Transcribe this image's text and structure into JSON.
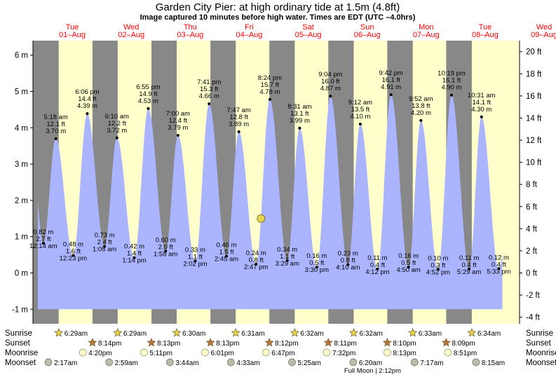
{
  "chart_data": {
    "type": "area",
    "title": "Garden City Pier: at high  ordinary tide at 1.5m (4.8ft)",
    "subtitle": "Image captured 10 minutes before high water. Times are EDT (UTC –4.0hrs)",
    "days": [
      {
        "dow": "Tue",
        "date": "01–Aug"
      },
      {
        "dow": "Wed",
        "date": "02–Aug"
      },
      {
        "dow": "Thu",
        "date": "03–Aug"
      },
      {
        "dow": "Fri",
        "date": "04–Aug"
      },
      {
        "dow": "Sat",
        "date": "05–Aug"
      },
      {
        "dow": "Sun",
        "date": "06–Aug"
      },
      {
        "dow": "Mon",
        "date": "07–Aug"
      },
      {
        "dow": "Tue",
        "date": "08–Aug"
      },
      {
        "dow": "Wed",
        "date": "09–Aug"
      }
    ],
    "y_left": {
      "unit": "m",
      "range": [
        -1.4,
        6.4
      ],
      "ticks": [
        -1,
        0,
        1,
        2,
        3,
        4,
        5,
        6
      ]
    },
    "y_right": {
      "unit": "ft",
      "ticks": [
        -4,
        -2,
        0,
        2,
        4,
        6,
        8,
        10,
        12,
        14,
        16,
        18,
        20
      ]
    },
    "x_range_hours": [
      20,
      218
    ],
    "current_level_m": 1.5,
    "highs": [
      {
        "time": "5:18 am",
        "ft": "12.1 ft",
        "m": "3.70 m",
        "hour": 29.3,
        "value": 3.7
      },
      {
        "time": "6:06 pm",
        "ft": "14.4 ft",
        "m": "4.39 m",
        "hour": 42.1,
        "value": 4.39
      },
      {
        "time": "6:10 am",
        "ft": "12.2 ft",
        "m": "3.72 m",
        "hour": 54.17,
        "value": 3.72
      },
      {
        "time": "6:55 pm",
        "ft": "14.9 ft",
        "m": "4.53 m",
        "hour": 66.92,
        "value": 4.53
      },
      {
        "time": "7:00 am",
        "ft": "12.4 ft",
        "m": "3.79 m",
        "hour": 79.0,
        "value": 3.79
      },
      {
        "time": "7:41 pm",
        "ft": "15.3 ft",
        "m": "4.66 m",
        "hour": 91.68,
        "value": 4.66
      },
      {
        "time": "7:47 am",
        "ft": "12.8 ft",
        "m": "3.89 m",
        "hour": 103.78,
        "value": 3.89
      },
      {
        "time": "8:24 pm",
        "ft": "15.7 ft",
        "m": "4.78 m",
        "hour": 116.4,
        "value": 4.78
      },
      {
        "time": "8:31 am",
        "ft": "13.1 ft",
        "m": "3.99 m",
        "hour": 128.52,
        "value": 3.99
      },
      {
        "time": "9:04 pm",
        "ft": "16.0 ft",
        "m": "4.87 m",
        "hour": 141.07,
        "value": 4.87
      },
      {
        "time": "9:12 am",
        "ft": "13.5 ft",
        "m": "4.10 m",
        "hour": 153.2,
        "value": 4.1
      },
      {
        "time": "9:42 pm",
        "ft": "16.1 ft",
        "m": "4.91 m",
        "hour": 165.7,
        "value": 4.91
      },
      {
        "time": "9:52 am",
        "ft": "13.8 ft",
        "m": "4.20 m",
        "hour": 177.87,
        "value": 4.2
      },
      {
        "time": "10:19 pm",
        "ft": "16.1 ft",
        "m": "4.90 m",
        "hour": 190.32,
        "value": 4.9
      },
      {
        "time": "10:31 am",
        "ft": "14.1 ft",
        "m": "4.30 m",
        "hour": 202.52,
        "value": 4.3
      }
    ],
    "lows": [
      {
        "time": "12:14 am",
        "ft": "2.7 ft",
        "m": "0.82 m",
        "hour": 24.23,
        "value": 0.82
      },
      {
        "time": "12:23 pm",
        "ft": "1.6 ft",
        "m": "0.48 m",
        "hour": 36.38,
        "value": 0.48
      },
      {
        "time": "1:08 am",
        "ft": "2.4 ft",
        "m": "0.73 m",
        "hour": 49.13,
        "value": 0.73
      },
      {
        "time": "1:14 pm",
        "ft": "1.4 ft",
        "m": "0.42 m",
        "hour": 61.23,
        "value": 0.42
      },
      {
        "time": "1:58 am",
        "ft": "2.0 ft",
        "m": "0.60 m",
        "hour": 73.97,
        "value": 0.6
      },
      {
        "time": "2:02 pm",
        "ft": "1.1 ft",
        "m": "0.33 m",
        "hour": 86.03,
        "value": 0.33
      },
      {
        "time": "2:45 am",
        "ft": "1.5 ft",
        "m": "0.46 m",
        "hour": 98.75,
        "value": 0.46
      },
      {
        "time": "2:47 pm",
        "ft": "0.8 ft",
        "m": "0.24 m",
        "hour": 110.78,
        "value": 0.24
      },
      {
        "time": "3:29 am",
        "ft": "1.1 ft",
        "m": "0.34 m",
        "hour": 123.48,
        "value": 0.34
      },
      {
        "time": "3:30 pm",
        "ft": "0.5 ft",
        "m": "0.16 m",
        "hour": 135.5,
        "value": 0.16
      },
      {
        "time": "4:10 am",
        "ft": "0.8 ft",
        "m": "0.23 m",
        "hour": 148.17,
        "value": 0.23
      },
      {
        "time": "4:12 pm",
        "ft": "0.4 ft",
        "m": "0.11 m",
        "hour": 160.2,
        "value": 0.11
      },
      {
        "time": "4:50 am",
        "ft": "0.5 ft",
        "m": "0.16 m",
        "hour": 172.83,
        "value": 0.16
      },
      {
        "time": "4:52 pm",
        "ft": "0.3 ft",
        "m": "0.10 m",
        "hour": 184.87,
        "value": 0.1
      },
      {
        "time": "5:29 am",
        "ft": "0.4 ft",
        "m": "0.11 m",
        "hour": 197.48,
        "value": 0.11
      },
      {
        "time": "5:33 pm",
        "ft": "0.4 ft",
        "m": "0.12 m",
        "hour": 209.55,
        "value": 0.12
      }
    ],
    "daylight": [
      {
        "start": 30.48,
        "end": 44.23
      },
      {
        "start": 54.48,
        "end": 68.22
      },
      {
        "start": 78.5,
        "end": 92.22
      },
      {
        "start": 102.52,
        "end": 116.2
      },
      {
        "start": 126.53,
        "end": 140.18
      },
      {
        "start": 150.53,
        "end": 164.17
      },
      {
        "start": 174.55,
        "end": 188.15
      },
      {
        "start": 198.57,
        "end": 218
      }
    ],
    "rows": {
      "sunrise": {
        "label": "Sunrise",
        "times": [
          "6:29am",
          "6:29am",
          "6:30am",
          "6:31am",
          "6:32am",
          "6:32am",
          "6:33am",
          "6:34am"
        ],
        "hours": [
          30.48,
          54.48,
          78.5,
          102.52,
          126.53,
          150.53,
          174.55,
          198.57
        ]
      },
      "sunset": {
        "label": "Sunset",
        "times": [
          "8:14pm",
          "8:13pm",
          "8:13pm",
          "8:12pm",
          "8:11pm",
          "8:10pm",
          "8:09pm"
        ],
        "hours": [
          44.23,
          68.22,
          92.22,
          116.2,
          140.18,
          164.17,
          188.15
        ]
      },
      "moonrise": {
        "label": "Moonrise",
        "times": [
          "4:20pm",
          "5:11pm",
          "6:01pm",
          "6:47pm",
          "7:32pm",
          "8:13pm",
          "8:51pm"
        ],
        "hours": [
          40.33,
          65.18,
          90.02,
          114.78,
          139.53,
          164.22,
          188.85
        ]
      },
      "moonset": {
        "label": "Moonset",
        "times": [
          "2:17am",
          "2:59am",
          "3:44am",
          "4:33am",
          "5:25am",
          "6:20am",
          "7:17am",
          "8:15am"
        ],
        "hours": [
          26.28,
          50.98,
          75.73,
          100.55,
          125.42,
          150.33,
          175.28,
          200.25
        ]
      }
    },
    "full_moon": {
      "label": "Full Moon | 2:12pm",
      "hour": 158.2
    },
    "colors": {
      "night": "#888888",
      "day": "#ffffcc",
      "tide": "#aab4ff",
      "date": "#ff0000",
      "now_marker": "#e6d44a",
      "sun": "#e8d24a",
      "sunset_star": "#b87838",
      "moonrise": "#ffffcc",
      "moonset": "#bbbbaa"
    }
  }
}
